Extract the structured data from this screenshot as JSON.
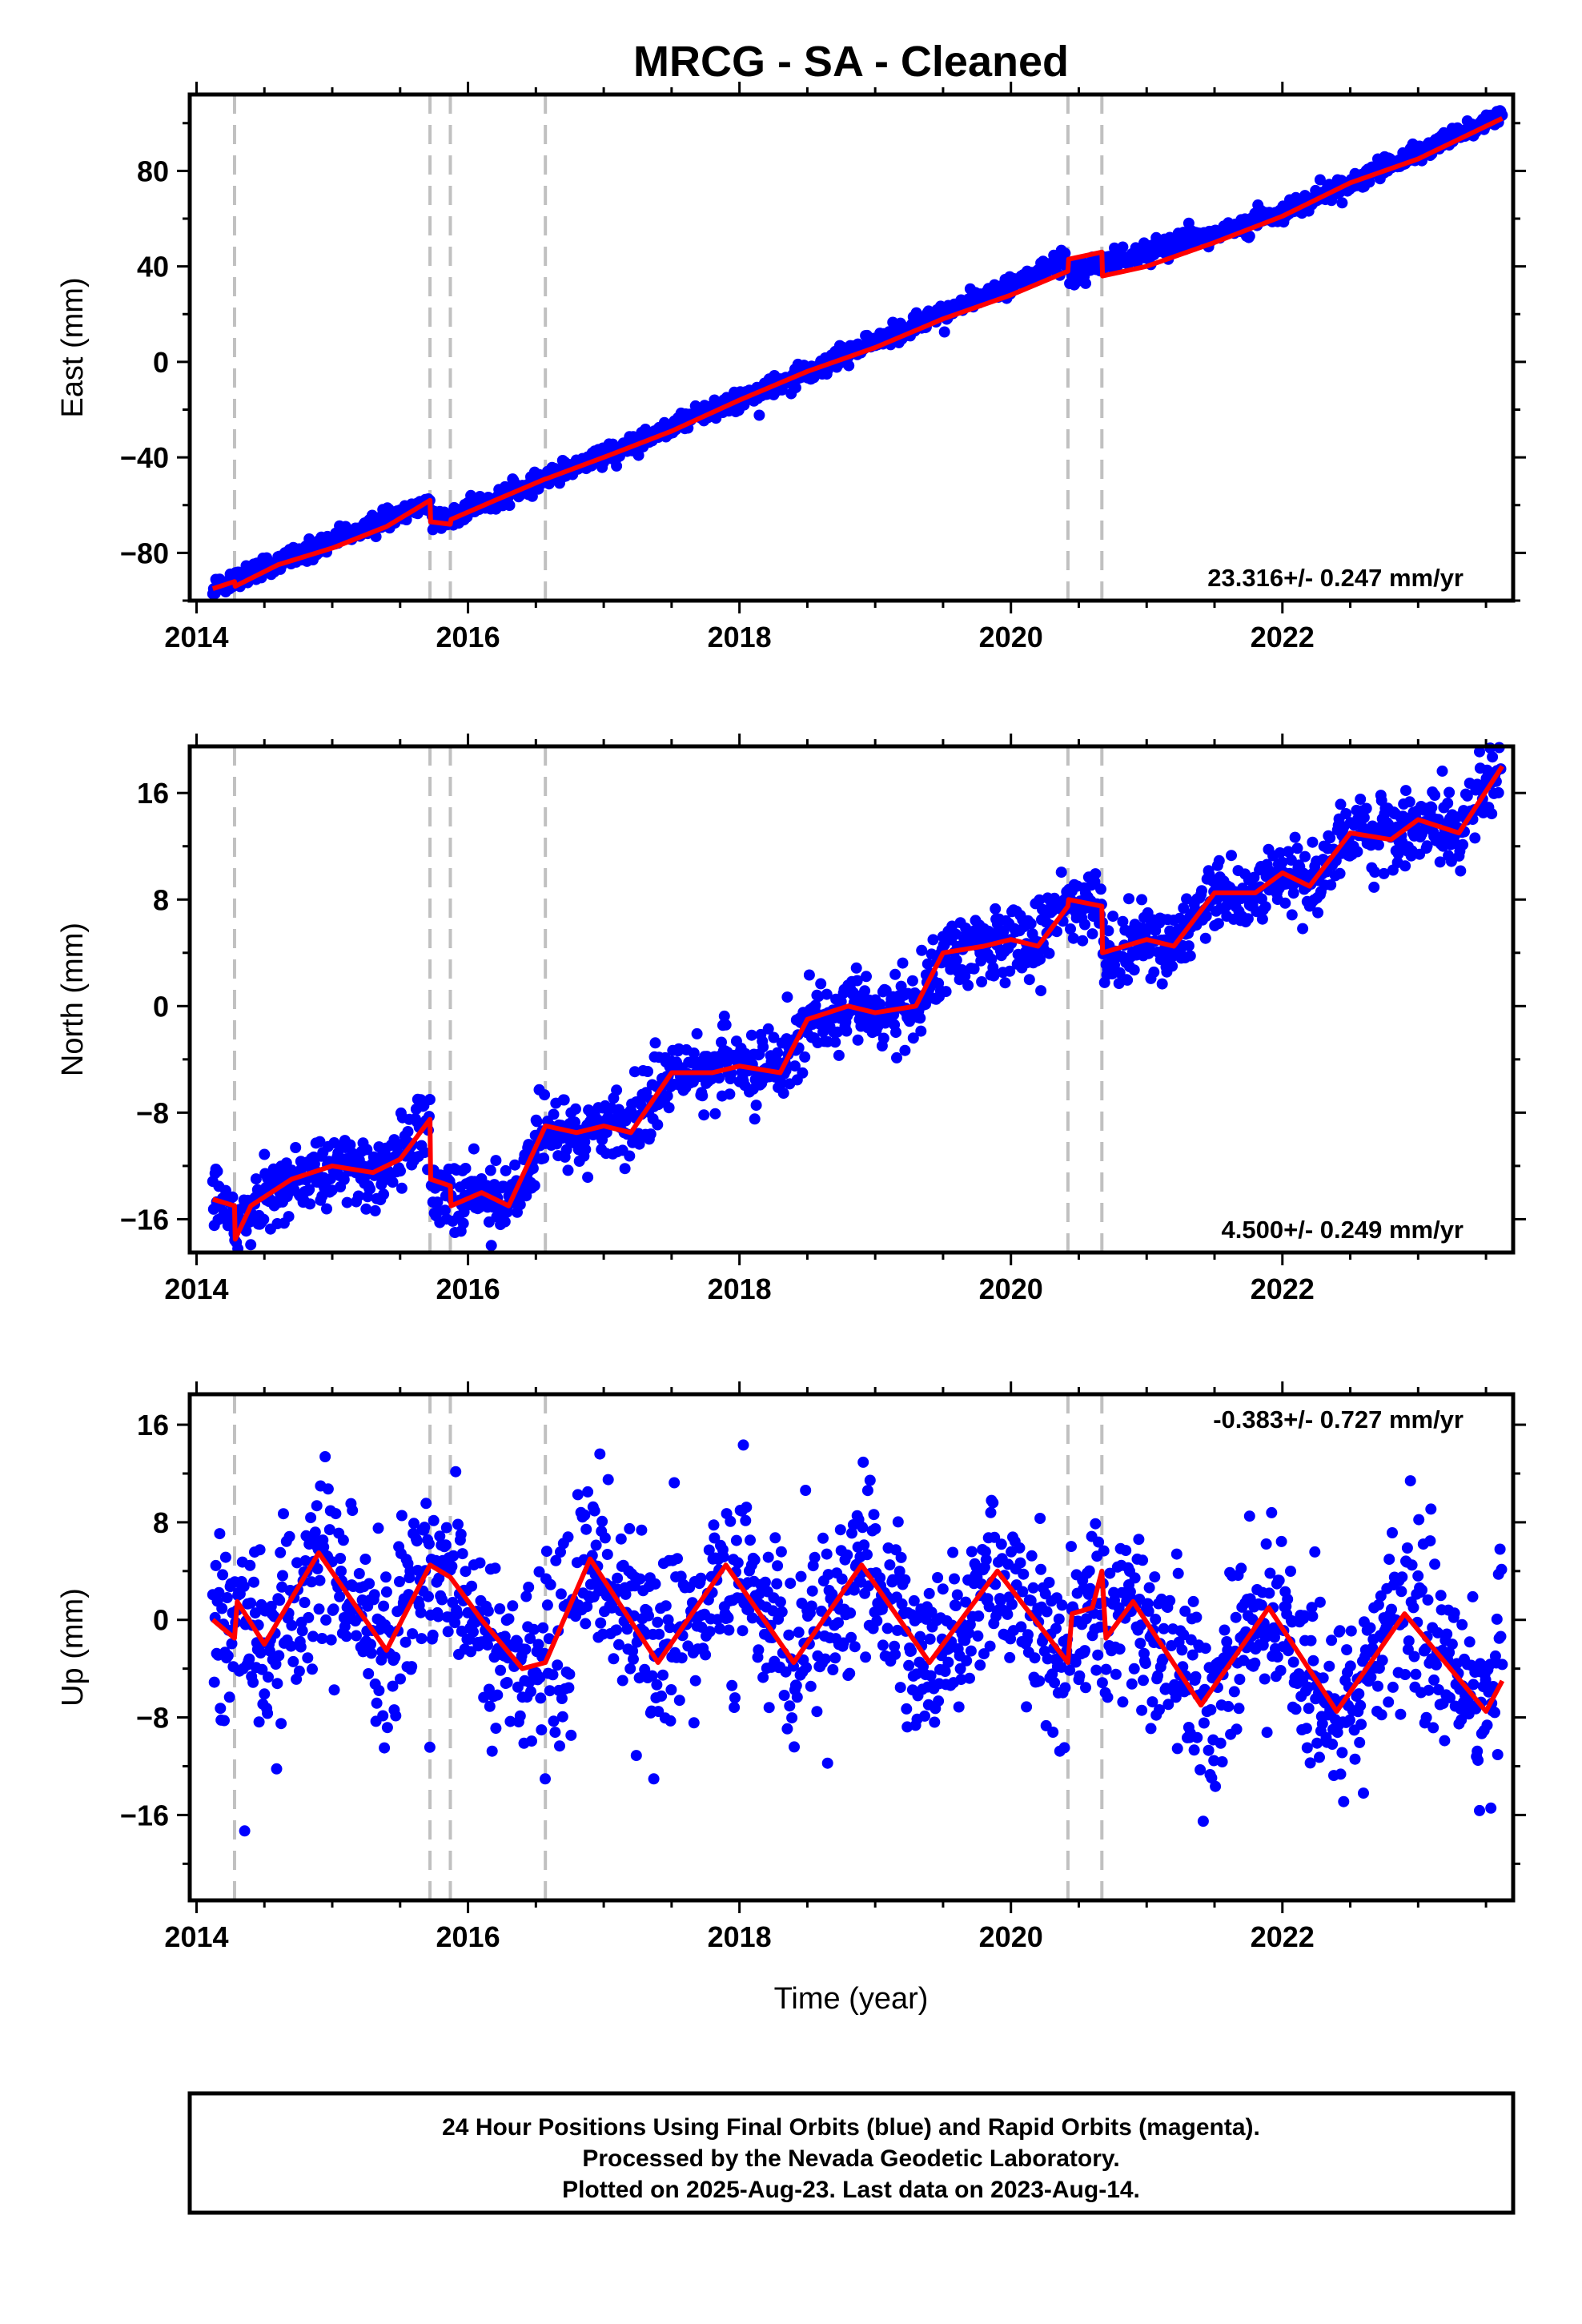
{
  "chart_data": [
    {
      "type": "scatter",
      "panel": "east",
      "title": "MRCG  - SA - Cleaned",
      "xlabel": "",
      "ylabel": "East (mm)",
      "xlim": [
        2013.95,
        2023.7
      ],
      "ylim": [
        -100,
        112
      ],
      "yticks_labeled": [
        -80,
        -40,
        0,
        40,
        80
      ],
      "ytick_labels": [
        "−80",
        "−40",
        "0",
        "40",
        "80"
      ],
      "xticks_labeled": [
        2014,
        2016,
        2018,
        2020,
        2022
      ],
      "xtick_labels": [
        "2014",
        "2016",
        "2018",
        "2020",
        "2022"
      ],
      "rate_label": "23.316+/- 0.247 mm/yr",
      "rate_position": "bottom-right",
      "step_lines": [
        2014.28,
        2015.72,
        2015.87,
        2016.57,
        2020.42,
        2020.67
      ],
      "grid": false,
      "series": [
        {
          "kind": "points",
          "color": "#0000ff",
          "x_start": 2014.12,
          "x_end": 2023.62,
          "description_shape": "linear",
          "anchor_x": [
            2014.12,
            2015.72,
            2015.73,
            2016.57,
            2018.0,
            2020.42,
            2020.43,
            2021.0,
            2022.0,
            2023.62
          ],
          "anchor_y": [
            -95,
            -59,
            -68,
            -49,
            -16,
            43,
            37,
            46,
            62,
            104
          ],
          "scatter_sd": 2.0
        },
        {
          "kind": "model",
          "color": "#ff0000",
          "x": [
            2014.12,
            2014.28,
            2014.285,
            2014.6,
            2015.0,
            2015.4,
            2015.72,
            2015.725,
            2015.87,
            2015.875,
            2016.2,
            2016.57,
            2016.575,
            2017.0,
            2017.5,
            2018.0,
            2018.5,
            2019.0,
            2019.5,
            2020.0,
            2020.42,
            2020.425,
            2020.67,
            2020.675,
            2021.0,
            2021.5,
            2022.0,
            2022.5,
            2023.0,
            2023.62
          ],
          "y": [
            -95,
            -92,
            -94,
            -85,
            -78,
            -69,
            -58,
            -67,
            -68,
            -66,
            -58,
            -49,
            -49,
            -40,
            -29,
            -16,
            -4,
            6,
            18,
            28,
            38,
            43,
            46,
            36,
            40,
            50,
            61,
            75,
            85,
            102
          ]
        }
      ]
    },
    {
      "type": "scatter",
      "panel": "north",
      "title": "",
      "xlabel": "",
      "ylabel": "North (mm)",
      "xlim": [
        2013.95,
        2023.7
      ],
      "ylim": [
        -18.5,
        19.5
      ],
      "yticks_labeled": [
        -16,
        -8,
        0,
        8,
        16
      ],
      "ytick_labels": [
        "−16",
        "−8",
        "0",
        "8",
        "16"
      ],
      "xticks_labeled": [
        2014,
        2016,
        2018,
        2020,
        2022
      ],
      "xtick_labels": [
        "2014",
        "2016",
        "2018",
        "2020",
        "2022"
      ],
      "rate_label": "4.500+/- 0.249 mm/yr",
      "rate_position": "bottom-right",
      "step_lines": [
        2014.28,
        2015.72,
        2015.87,
        2016.57,
        2020.42,
        2020.67
      ],
      "grid": false,
      "series": [
        {
          "kind": "points",
          "color": "#0000ff",
          "x_start": 2014.12,
          "x_end": 2023.62,
          "follows_model": true,
          "scatter_sd": 1.3
        },
        {
          "kind": "model",
          "color": "#ff0000",
          "x": [
            2014.12,
            2014.28,
            2014.285,
            2014.4,
            2014.7,
            2015.0,
            2015.3,
            2015.5,
            2015.72,
            2015.725,
            2015.87,
            2015.875,
            2016.1,
            2016.3,
            2016.57,
            2016.575,
            2016.8,
            2017.0,
            2017.2,
            2017.5,
            2017.8,
            2018.0,
            2018.3,
            2018.5,
            2018.8,
            2019.0,
            2019.3,
            2019.5,
            2019.8,
            2020.0,
            2020.2,
            2020.42,
            2020.425,
            2020.67,
            2020.675,
            2021.0,
            2021.2,
            2021.5,
            2021.8,
            2022.0,
            2022.2,
            2022.5,
            2022.8,
            2023.0,
            2023.3,
            2023.62
          ],
          "y": [
            -14.5,
            -15,
            -17.5,
            -15,
            -13,
            -12,
            -12.5,
            -11.5,
            -8.5,
            -13,
            -13.5,
            -15,
            -14,
            -15,
            -9,
            -9,
            -9.5,
            -9,
            -9.5,
            -5,
            -5,
            -4.5,
            -5,
            -1,
            0,
            -0.5,
            0,
            4,
            4.5,
            5,
            4.5,
            7.5,
            8,
            7.5,
            4,
            5,
            4.5,
            8.5,
            8.5,
            10,
            9,
            13,
            12.5,
            14,
            13,
            18
          ]
        }
      ]
    },
    {
      "type": "scatter",
      "panel": "up",
      "title": "",
      "xlabel": "Time (year)",
      "ylabel": "Up (mm)",
      "xlim": [
        2013.95,
        2023.7
      ],
      "ylim": [
        -23,
        18.5
      ],
      "yticks_labeled": [
        -16,
        -8,
        0,
        8,
        16
      ],
      "ytick_labels": [
        "−16",
        "−8",
        "0",
        "8",
        "16"
      ],
      "xticks_labeled": [
        2014,
        2016,
        2018,
        2020,
        2022
      ],
      "xtick_labels": [
        "2014",
        "2016",
        "2018",
        "2020",
        "2022"
      ],
      "rate_label": "-0.383+/- 0.727 mm/yr",
      "rate_position": "top-right",
      "step_lines": [
        2014.28,
        2015.72,
        2015.87,
        2016.57,
        2020.42,
        2020.67
      ],
      "grid": false,
      "series": [
        {
          "kind": "points",
          "color": "#0000ff",
          "x_start": 2014.12,
          "x_end": 2023.62,
          "follows_model": true,
          "scatter_sd": 3.6
        },
        {
          "kind": "model",
          "color": "#ff0000",
          "x": [
            2014.12,
            2014.28,
            2014.3,
            2014.5,
            2014.9,
            2015.4,
            2015.72,
            2015.87,
            2016.1,
            2016.4,
            2016.57,
            2016.9,
            2017.4,
            2017.9,
            2018.4,
            2018.9,
            2019.4,
            2019.9,
            2020.42,
            2020.45,
            2020.6,
            2020.67,
            2020.7,
            2020.9,
            2021.4,
            2021.9,
            2022.4,
            2022.9,
            2023.5,
            2023.62
          ],
          "y": [
            0,
            -1.5,
            1.5,
            -2,
            5.5,
            -2.5,
            4.5,
            3.5,
            0,
            -4,
            -3.5,
            5,
            -3.5,
            4.5,
            -3.5,
            4.5,
            -3.5,
            4,
            -3.5,
            0.5,
            1,
            4,
            -1.5,
            1.5,
            -7,
            1,
            -7.5,
            0.5,
            -7.5,
            -5
          ]
        }
      ]
    }
  ],
  "footer": {
    "line1": "24 Hour Positions Using Final Orbits (blue) and Rapid Orbits (magenta).",
    "line2": "Processed by the Nevada Geodetic Laboratory.",
    "line3": "Plotted on 2025-Aug-23. Last data on 2023-Aug-14."
  },
  "colors": {
    "final_orbits": "#0000ff",
    "model_fit": "#ff0000",
    "step_line": "#c0c0c0",
    "frame": "#000000"
  }
}
